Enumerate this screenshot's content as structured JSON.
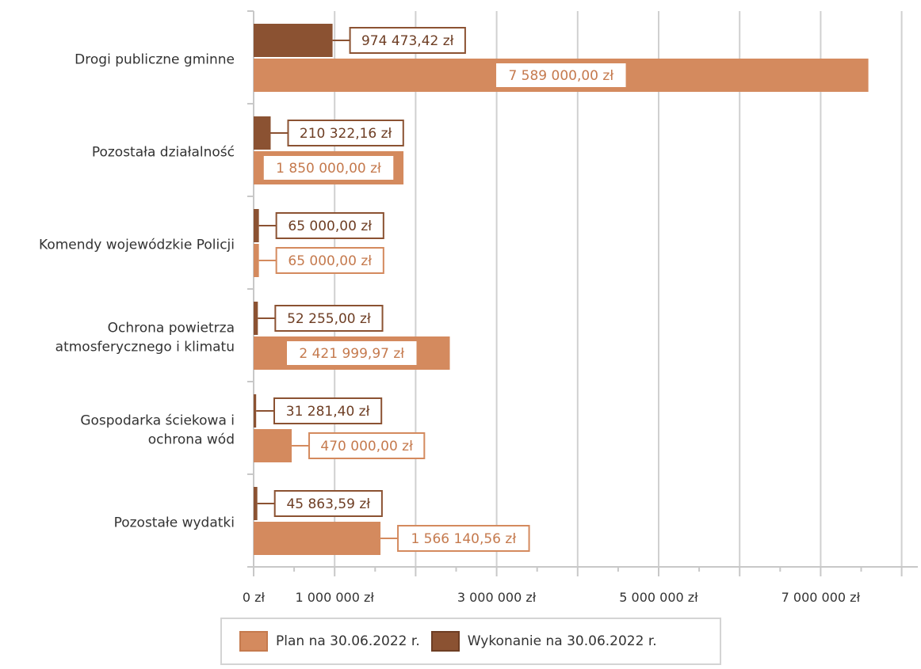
{
  "chart_data": {
    "type": "bar",
    "orientation": "horizontal",
    "categories": [
      "Drogi publiczne gminne",
      "Pozostała działalność",
      "Komendy wojewódzkie Policji",
      "Ochrona powietrza atmosferycznego i klimatu",
      "Gospodarka ściekowa i ochrona wód",
      "Pozostałe wydatki"
    ],
    "category_lines": [
      [
        "Drogi publiczne gminne"
      ],
      [
        "Pozostała działalność"
      ],
      [
        "Komendy wojewódzkie Policji"
      ],
      [
        "Ochrona powietrza",
        "atmosferycznego i klimatu"
      ],
      [
        "Gospodarka ściekowa i",
        "ochrona wód"
      ],
      [
        "Pozostałe wydatki"
      ]
    ],
    "series": [
      {
        "name": "Wykonanie na 30.06.2022 r.",
        "color": "#8b5232",
        "values": [
          974473.42,
          210322.16,
          65000.0,
          52255.0,
          31281.4,
          45863.59
        ],
        "labels": [
          "974 473,42 zł",
          "210 322,16 zł",
          "65 000,00 zł",
          "52 255,00 zł",
          "31 281,40 zł",
          "45 863,59 zł"
        ]
      },
      {
        "name": "Plan na 30.06.2022 r.",
        "color": "#d48a5e",
        "values": [
          7589000.0,
          1850000.0,
          65000.0,
          2421999.97,
          470000.0,
          1566140.56
        ],
        "labels": [
          "7 589 000,00 zł",
          "1 850 000,00 zł",
          "65 000,00 zł",
          "2 421 999,97 zł",
          "470 000,00 zł",
          "1 566 140,56 zł"
        ]
      }
    ],
    "x_ticks": [
      {
        "value": 0,
        "label": "0 zł"
      },
      {
        "value": 1000000,
        "label": "1 000 000 zł"
      },
      {
        "value": 3000000,
        "label": "3 000 000 zł"
      },
      {
        "value": 5000000,
        "label": "5 000 000 zł"
      },
      {
        "value": 7000000,
        "label": "7 000 000 zł"
      }
    ],
    "gridlines": [
      0,
      1000000,
      2000000,
      3000000,
      4000000,
      5000000,
      6000000,
      7000000,
      8000000
    ],
    "xlim": [
      0,
      8000000
    ],
    "grid": true,
    "legend_position": "bottom",
    "legend": [
      {
        "label": "Plan na 30.06.2022 r.",
        "color": "#d48a5e"
      },
      {
        "label": "Wykonanie na 30.06.2022 r.",
        "color": "#8b5232"
      }
    ]
  }
}
